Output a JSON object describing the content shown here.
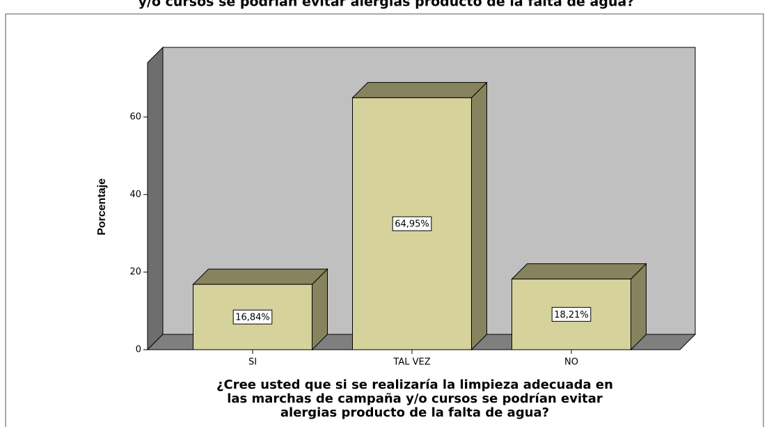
{
  "chart_data": {
    "type": "bar3d",
    "title": "y/o cursos se podrían evitar alergias producto de la falta de agua?",
    "ylabel": "Porcentaje",
    "xlabel": [
      "¿Cree usted que si se realizaría la limpieza adecuada en",
      "las marchas de campaña y/o cursos se podrían evitar",
      "alergias producto de la falta de agua?"
    ],
    "categories": [
      "SI",
      "TAL VEZ",
      "NO"
    ],
    "values": [
      16.84,
      64.95,
      18.21
    ],
    "value_labels": [
      "16,84%",
      "64,95%",
      "18,21%"
    ],
    "color": "#d6d29c",
    "ylim": [
      0,
      74
    ],
    "yticks": [
      0,
      20,
      40,
      60
    ]
  }
}
